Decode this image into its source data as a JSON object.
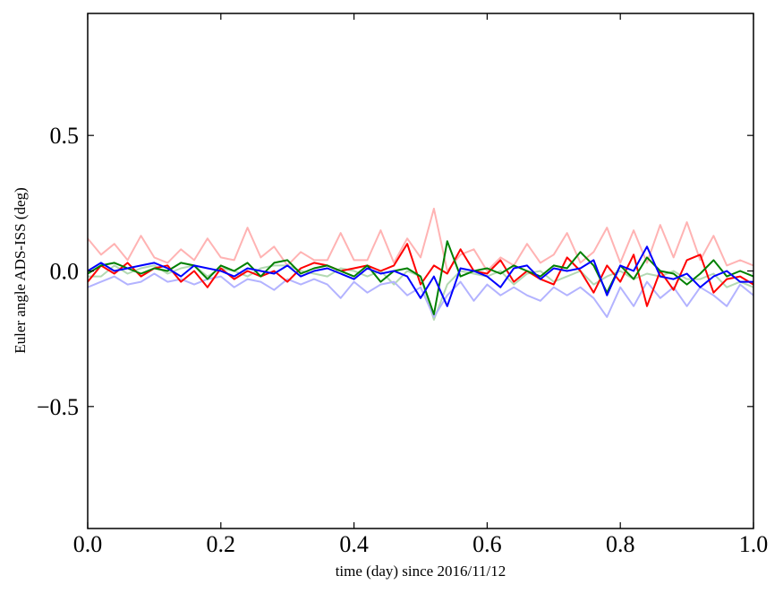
{
  "chart_data": {
    "type": "line",
    "title": "",
    "xlabel": "time (day) since 2016/11/12",
    "ylabel": "Euler angle ADS-ISS (deg)",
    "xlim": [
      0.0,
      1.0
    ],
    "ylim": [
      -0.95,
      0.95
    ],
    "grid": false,
    "legend": "none",
    "x_ticks": [
      0.0,
      0.2,
      0.4,
      0.6,
      0.8,
      1.0
    ],
    "x_tick_labels": [
      "0.0",
      "0.2",
      "0.4",
      "0.6",
      "0.8",
      "1.0"
    ],
    "y_ticks": [
      0.5,
      0.0,
      -0.5
    ],
    "y_tick_labels": [
      "0.5",
      "0.0",
      "−0.5"
    ],
    "x": [
      0.0,
      0.02,
      0.04,
      0.06,
      0.08,
      0.1,
      0.12,
      0.14,
      0.16,
      0.18,
      0.2,
      0.22,
      0.24,
      0.26,
      0.28,
      0.3,
      0.32,
      0.34,
      0.36,
      0.38,
      0.4,
      0.42,
      0.44,
      0.46,
      0.48,
      0.5,
      0.52,
      0.54,
      0.56,
      0.58,
      0.6,
      0.62,
      0.64,
      0.66,
      0.68,
      0.7,
      0.72,
      0.74,
      0.76,
      0.78,
      0.8,
      0.82,
      0.84,
      0.86,
      0.88,
      0.9,
      0.92,
      0.94,
      0.96,
      0.98,
      1.0
    ],
    "series": [
      {
        "color": "#ffb3b3",
        "values": [
          0.12,
          0.06,
          0.1,
          0.04,
          0.13,
          0.05,
          0.03,
          0.08,
          0.04,
          0.12,
          0.05,
          0.04,
          0.16,
          0.05,
          0.09,
          0.02,
          0.07,
          0.04,
          0.04,
          0.14,
          0.04,
          0.04,
          0.15,
          0.03,
          0.12,
          0.05,
          0.23,
          0.0,
          0.06,
          0.08,
          0.0,
          0.05,
          0.02,
          0.1,
          0.03,
          0.06,
          0.14,
          0.03,
          0.07,
          0.16,
          0.03,
          0.15,
          0.03,
          0.17,
          0.05,
          0.18,
          0.04,
          0.13,
          0.02,
          0.04,
          0.02
        ]
      },
      {
        "color": "#b3d9b3",
        "values": [
          -0.02,
          -0.02,
          0.02,
          -0.01,
          0.01,
          0.02,
          -0.01,
          0.01,
          0.02,
          -0.02,
          0.01,
          0.0,
          -0.02,
          0.01,
          0.02,
          0.02,
          0.0,
          -0.01,
          -0.02,
          0.01,
          0.0,
          -0.02,
          0.0,
          -0.05,
          0.0,
          -0.02,
          -0.18,
          -0.05,
          0.0,
          -0.01,
          -0.02,
          0.0,
          -0.05,
          -0.01,
          0.0,
          -0.04,
          -0.02,
          0.0,
          -0.05,
          -0.02,
          0.0,
          -0.03,
          -0.01,
          -0.02,
          0.0,
          -0.03,
          -0.03,
          -0.01,
          -0.06,
          -0.04,
          -0.06
        ]
      },
      {
        "color": "#b3b3ff",
        "values": [
          -0.06,
          -0.04,
          -0.02,
          -0.05,
          -0.04,
          -0.01,
          -0.04,
          -0.03,
          -0.05,
          -0.03,
          -0.02,
          -0.06,
          -0.03,
          -0.04,
          -0.07,
          -0.03,
          -0.05,
          -0.03,
          -0.05,
          -0.1,
          -0.04,
          -0.08,
          -0.05,
          -0.04,
          -0.09,
          -0.06,
          -0.17,
          -0.09,
          -0.04,
          -0.11,
          -0.05,
          -0.09,
          -0.06,
          -0.09,
          -0.11,
          -0.06,
          -0.09,
          -0.06,
          -0.1,
          -0.17,
          -0.06,
          -0.13,
          -0.04,
          -0.1,
          -0.06,
          -0.13,
          -0.06,
          -0.09,
          -0.13,
          -0.05,
          -0.09
        ]
      },
      {
        "color": "#ff0000",
        "values": [
          -0.04,
          0.02,
          -0.01,
          0.03,
          -0.02,
          0.01,
          0.02,
          -0.04,
          0.0,
          -0.06,
          0.01,
          -0.03,
          0.0,
          -0.02,
          0.0,
          -0.04,
          0.01,
          0.03,
          0.02,
          0.0,
          0.01,
          0.02,
          0.0,
          0.02,
          0.1,
          -0.05,
          0.02,
          -0.01,
          0.08,
          0.0,
          -0.01,
          0.04,
          -0.04,
          0.0,
          -0.03,
          -0.05,
          0.05,
          0.0,
          -0.08,
          0.02,
          -0.04,
          0.06,
          -0.13,
          0.0,
          -0.07,
          0.04,
          0.06,
          -0.08,
          -0.03,
          -0.02,
          -0.05
        ]
      },
      {
        "color": "#008000",
        "values": [
          -0.01,
          0.02,
          0.03,
          0.01,
          -0.01,
          0.01,
          0.0,
          0.03,
          0.02,
          -0.03,
          0.02,
          0.0,
          0.03,
          -0.02,
          0.03,
          0.04,
          -0.01,
          0.01,
          0.02,
          0.0,
          -0.02,
          0.02,
          -0.04,
          0.0,
          0.01,
          -0.02,
          -0.16,
          0.11,
          -0.02,
          0.0,
          0.01,
          -0.01,
          0.02,
          0.0,
          -0.02,
          0.02,
          0.01,
          0.07,
          0.02,
          -0.08,
          0.02,
          -0.03,
          0.05,
          0.0,
          -0.01,
          -0.05,
          -0.01,
          0.04,
          -0.02,
          0.0,
          -0.02
        ]
      },
      {
        "color": "#0000ff",
        "values": [
          0.0,
          0.03,
          0.0,
          0.01,
          0.02,
          0.03,
          0.01,
          -0.02,
          0.02,
          0.01,
          0.0,
          -0.02,
          0.01,
          0.0,
          -0.01,
          0.02,
          -0.02,
          0.0,
          0.01,
          -0.01,
          -0.03,
          0.01,
          -0.01,
          0.0,
          -0.02,
          -0.1,
          -0.02,
          -0.13,
          0.01,
          0.0,
          -0.02,
          -0.06,
          0.01,
          0.02,
          -0.03,
          0.01,
          0.0,
          0.01,
          0.04,
          -0.09,
          0.02,
          0.0,
          0.09,
          -0.02,
          -0.03,
          -0.01,
          -0.06,
          -0.02,
          0.0,
          -0.04,
          -0.04
        ]
      }
    ]
  }
}
